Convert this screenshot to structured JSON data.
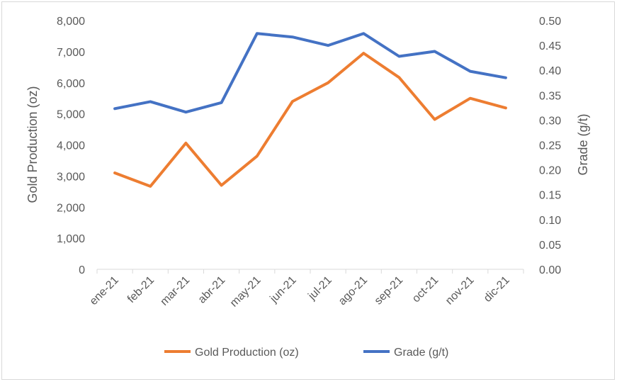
{
  "chart_data": {
    "type": "line",
    "categories": [
      "ene-21",
      "feb-21",
      "mar-21",
      "abr-21",
      "may-21",
      "jun-21",
      "jul-21",
      "ago-21",
      "sep-21",
      "oct-21",
      "nov-21",
      "dic-21"
    ],
    "series": [
      {
        "name": "Gold Production (oz)",
        "axis": "left",
        "color": "#ED7D31",
        "values": [
          3100,
          2670,
          4060,
          2700,
          3640,
          5400,
          6000,
          6950,
          6170,
          4820,
          5500,
          5190
        ]
      },
      {
        "name": "Grade (g/t)",
        "axis": "right",
        "color": "#4472C4",
        "values": [
          0.323,
          0.337,
          0.316,
          0.335,
          0.474,
          0.467,
          0.45,
          0.474,
          0.428,
          0.438,
          0.398,
          0.385
        ]
      }
    ],
    "ylabel": "Gold Production (oz)",
    "y2label": "Grade (g/t)",
    "ylim": [
      0,
      8000
    ],
    "y2lim": [
      0,
      0.5
    ],
    "yticks": [
      "0",
      "1,000",
      "2,000",
      "3,000",
      "4,000",
      "5,000",
      "6,000",
      "7,000",
      "8,000"
    ],
    "y2ticks": [
      "0.00",
      "0.05",
      "0.10",
      "0.15",
      "0.20",
      "0.25",
      "0.30",
      "0.35",
      "0.40",
      "0.45",
      "0.50"
    ],
    "grid": false,
    "legend": "bottom"
  }
}
